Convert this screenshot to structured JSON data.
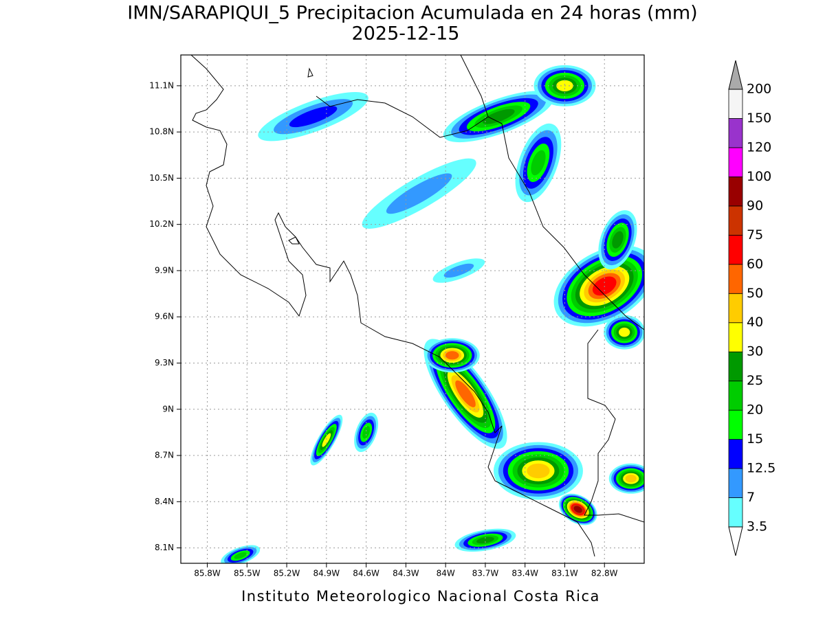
{
  "title": "IMN/SARAPIQUI_5 Precipitacion Acumulada en 24 horas (mm)",
  "subtitle": "2025-12-15",
  "map": {
    "xlim": [
      -86,
      -82.5
    ],
    "ylim": [
      8,
      11.3
    ],
    "xticks": [
      {
        "value": -85.8,
        "label": "85.8W"
      },
      {
        "value": -85.5,
        "label": "85.5W"
      },
      {
        "value": -85.2,
        "label": "85.2W"
      },
      {
        "value": -84.9,
        "label": "84.9W"
      },
      {
        "value": -84.6,
        "label": "84.6W"
      },
      {
        "value": -84.3,
        "label": "84.3W"
      },
      {
        "value": -84,
        "label": "84W"
      },
      {
        "value": -83.7,
        "label": "83.7W"
      },
      {
        "value": -83.4,
        "label": "83.4W"
      },
      {
        "value": -83.1,
        "label": "83.1W"
      },
      {
        "value": -82.8,
        "label": "82.8W"
      }
    ],
    "yticks": [
      {
        "value": 8.1,
        "label": "8.1N"
      },
      {
        "value": 8.4,
        "label": "8.4N"
      },
      {
        "value": 8.7,
        "label": "8.7N"
      },
      {
        "value": 9,
        "label": "9N"
      },
      {
        "value": 9.3,
        "label": "9.3N"
      },
      {
        "value": 9.6,
        "label": "9.6N"
      },
      {
        "value": 9.9,
        "label": "9.9N"
      },
      {
        "value": 10.2,
        "label": "10.2N"
      },
      {
        "value": 10.5,
        "label": "10.5N"
      },
      {
        "value": 10.8,
        "label": "10.8N"
      },
      {
        "value": 11.1,
        "label": "11.1N"
      }
    ],
    "grid": true
  },
  "colorbar": {
    "levels": [
      3.5,
      7,
      12.5,
      15,
      20,
      25,
      30,
      40,
      50,
      60,
      75,
      90,
      100,
      120,
      150,
      200
    ],
    "colors": [
      "#66ffff",
      "#3399ff",
      "#0000ff",
      "#00ff00",
      "#00cc00",
      "#009900",
      "#ffff00",
      "#ffcc00",
      "#ff6600",
      "#ff0000",
      "#cc3300",
      "#990000",
      "#ff00ff",
      "#9933cc",
      "#f5f5f5"
    ],
    "under_color": "#ffffff",
    "over_color": "#aaaaaa"
  },
  "footer": "Instituto Meteorologico Nacional Costa Rica"
}
